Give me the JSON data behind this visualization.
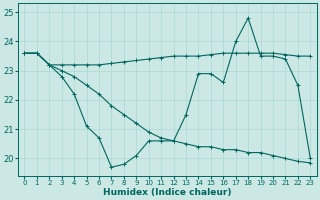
{
  "xlabel": "Humidex (Indice chaleur)",
  "xlim": [
    -0.5,
    23.5
  ],
  "ylim": [
    19.4,
    25.3
  ],
  "yticks": [
    20,
    21,
    22,
    23,
    24,
    25
  ],
  "xticks": [
    0,
    1,
    2,
    3,
    4,
    5,
    6,
    7,
    8,
    9,
    10,
    11,
    12,
    13,
    14,
    15,
    16,
    17,
    18,
    19,
    20,
    21,
    22,
    23
  ],
  "bg_color": "#cce8e4",
  "line_color": "#006660",
  "grid_color": "#aad8d4",
  "series_wavy": [
    23.6,
    23.6,
    23.2,
    22.8,
    22.2,
    21.1,
    20.7,
    19.7,
    19.8,
    20.1,
    20.6,
    20.6,
    20.6,
    21.5,
    22.9,
    22.9,
    22.6,
    24.0,
    24.8,
    23.5,
    23.5,
    23.4,
    22.5,
    20.0
  ],
  "series_flat": [
    23.6,
    23.6,
    23.2,
    23.2,
    23.2,
    23.2,
    23.2,
    23.25,
    23.3,
    23.35,
    23.4,
    23.45,
    23.5,
    23.5,
    23.5,
    23.55,
    23.6,
    23.6,
    23.6,
    23.6,
    23.6,
    23.55,
    23.5,
    23.5
  ],
  "series_diagonal": [
    23.6,
    23.6,
    23.2,
    23.0,
    22.8,
    22.5,
    22.2,
    21.8,
    21.5,
    21.2,
    20.9,
    20.7,
    20.6,
    20.5,
    20.4,
    20.4,
    20.3,
    20.3,
    20.2,
    20.2,
    20.1,
    20.0,
    19.9,
    19.85
  ]
}
